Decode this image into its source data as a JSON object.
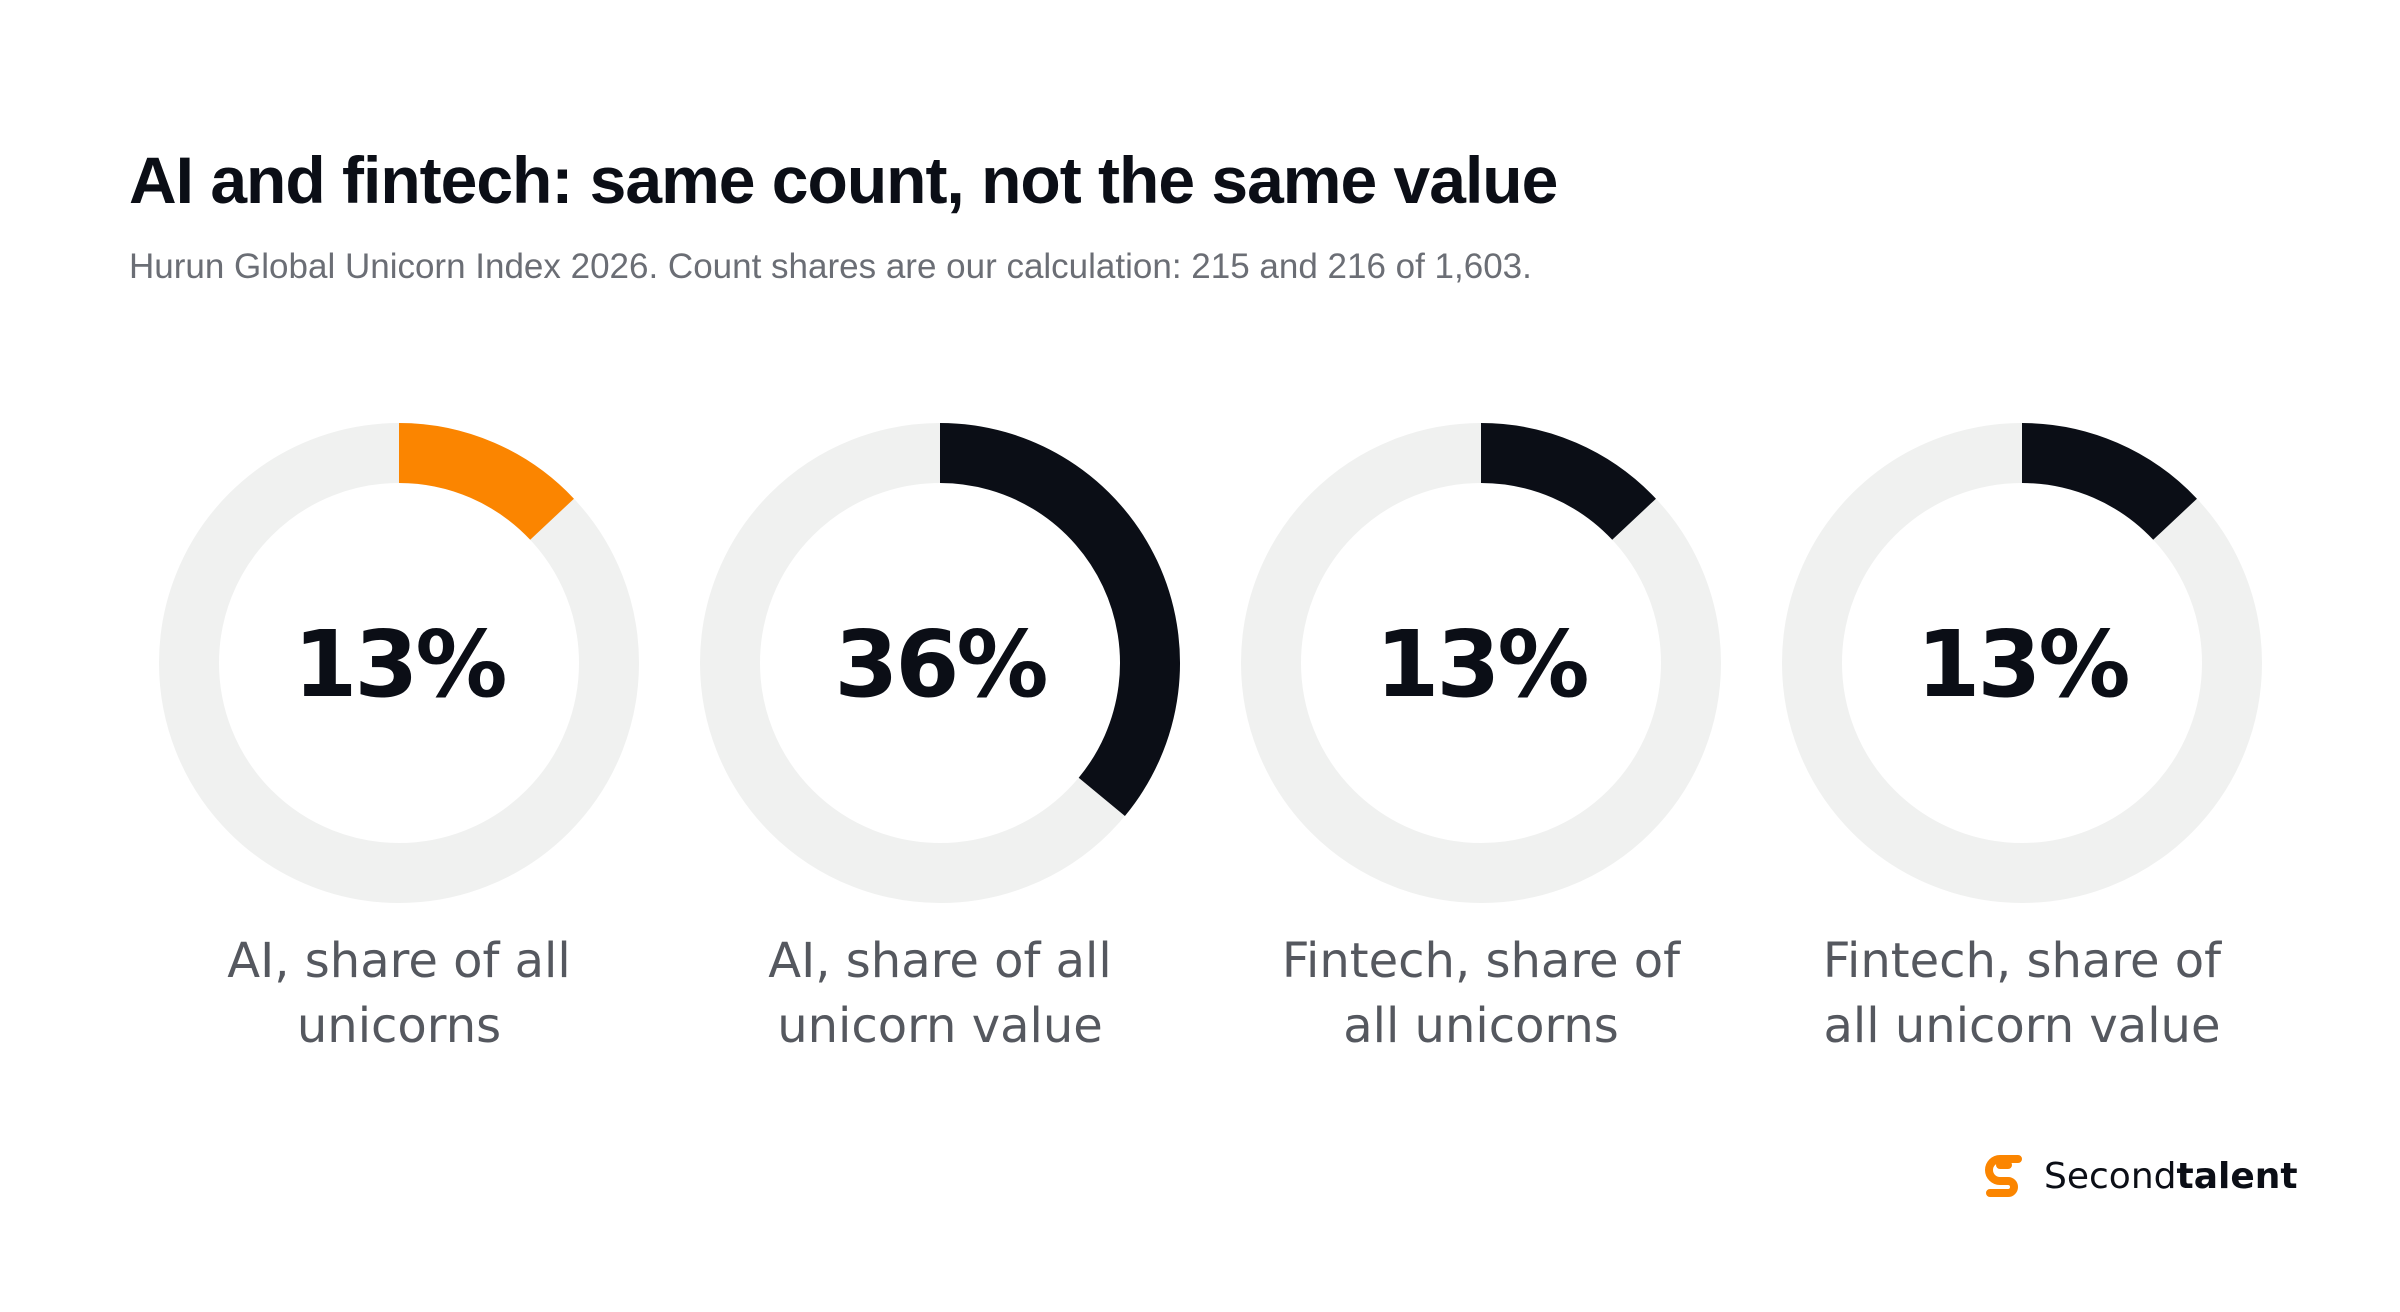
{
  "header": {
    "title": "AI and fintech: same count, not the same value",
    "subtitle": "Hurun Global Unicorn Index 2026. Count shares are our calculation: 215 and 216 of 1,603."
  },
  "chart_data": {
    "type": "pie",
    "variant": "donut",
    "title": "AI and fintech: same count, not the same value",
    "subtitle": "Hurun Global Unicorn Index 2026. Count shares are our calculation: 215 and 216 of 1,603.",
    "track_color": "#f0f1f0",
    "charts": [
      {
        "value": 13,
        "value_label": "13%",
        "label_lines": [
          "AI, share of all",
          "unicorns"
        ],
        "color": "#fb8500"
      },
      {
        "value": 36,
        "value_label": "36%",
        "label_lines": [
          "AI, share of all",
          "unicorn value"
        ],
        "color": "#0b0e16"
      },
      {
        "value": 13,
        "value_label": "13%",
        "label_lines": [
          "Fintech, share of",
          "all unicorns"
        ],
        "color": "#0b0e16"
      },
      {
        "value": 13,
        "value_label": "13%",
        "label_lines": [
          "Fintech, share of",
          "all unicorn value"
        ],
        "color": "#0b0e16"
      }
    ]
  },
  "brand": {
    "name_light": "Second",
    "name_bold": "talent",
    "icon": "secondtalent-logo-icon",
    "accent_color": "#fb8500"
  }
}
